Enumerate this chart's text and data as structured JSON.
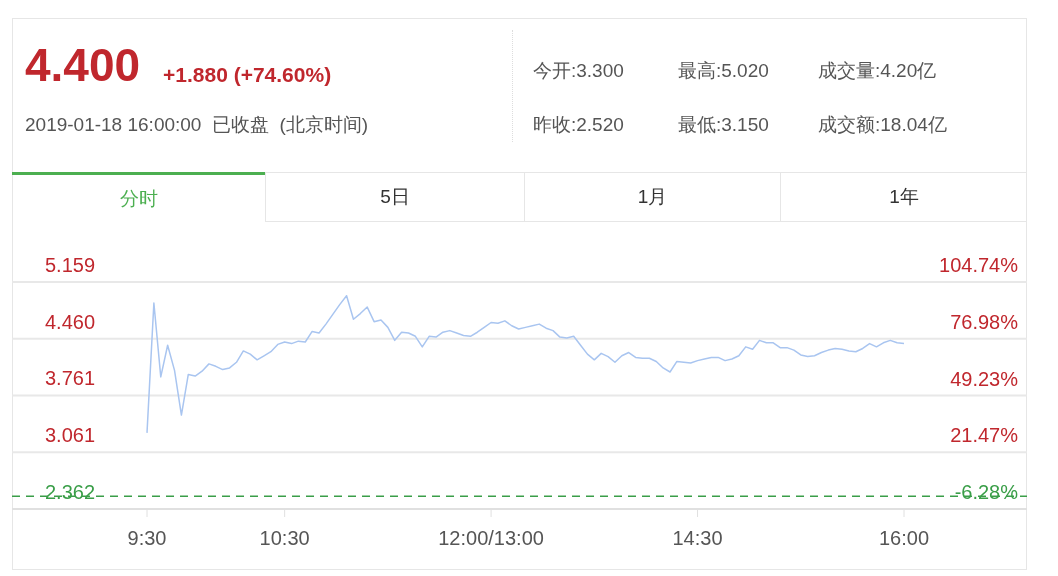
{
  "chart_data": {
    "type": "line",
    "title": "4.400",
    "subtitle": "+1.880 (+74.60%)",
    "annotations": [
      "2019-01-18 16:00:00  已收盘  (北京时间)",
      "今开:3.300",
      "最高:5.020",
      "成交量:4.20亿",
      "昨收:2.520",
      "最低:3.150",
      "成交额:18.04亿",
      "分时",
      "5日",
      "1月",
      "1年"
    ],
    "categories": [
      "9:30",
      null,
      null,
      null,
      null,
      null,
      null,
      null,
      null,
      null,
      null,
      null,
      null,
      null,
      null,
      null,
      null,
      null,
      null,
      null,
      "10:30",
      null,
      null,
      null,
      null,
      null,
      null,
      null,
      null,
      null,
      null,
      null,
      null,
      null,
      null,
      null,
      null,
      null,
      null,
      null,
      null,
      null,
      null,
      null,
      null,
      null,
      null,
      null,
      null,
      null,
      "12:00/13:00",
      null,
      null,
      null,
      null,
      null,
      null,
      null,
      null,
      null,
      null,
      null,
      null,
      null,
      null,
      null,
      null,
      null,
      null,
      null,
      null,
      null,
      null,
      null,
      null,
      null,
      null,
      null,
      null,
      null,
      "14:30",
      null,
      null,
      null,
      null,
      null,
      null,
      null,
      null,
      null,
      null,
      null,
      null,
      null,
      null,
      null,
      null,
      null,
      null,
      null,
      null,
      null,
      null,
      null,
      null,
      null,
      null,
      null,
      null,
      null,
      "16:00"
    ],
    "series": [
      {
        "color": "#a9c5f0",
        "values": [
          3.3,
          4.9,
          3.99,
          4.38,
          4.07,
          3.52,
          4.02,
          4.0,
          4.06,
          4.15,
          4.12,
          4.08,
          4.1,
          4.17,
          4.31,
          4.27,
          4.2,
          4.25,
          4.3,
          4.39,
          4.42,
          4.4,
          4.43,
          4.42,
          4.55,
          4.53,
          4.64,
          4.76,
          4.88,
          4.99,
          4.7,
          4.77,
          4.85,
          4.67,
          4.69,
          4.6,
          4.44,
          4.54,
          4.53,
          4.49,
          4.36,
          4.49,
          4.48,
          4.54,
          4.56,
          4.53,
          4.5,
          4.49,
          4.54,
          4.6,
          4.66,
          4.65,
          4.68,
          4.62,
          4.58,
          4.6,
          4.62,
          4.64,
          4.59,
          4.56,
          4.48,
          4.47,
          4.49,
          4.38,
          4.27,
          4.2,
          4.28,
          4.24,
          4.17,
          4.25,
          4.29,
          4.23,
          4.22,
          4.22,
          4.18,
          4.1,
          4.05,
          4.18,
          4.17,
          4.16,
          4.19,
          4.21,
          4.23,
          4.23,
          4.19,
          4.21,
          4.25,
          4.36,
          4.33,
          4.44,
          4.41,
          4.41,
          4.35,
          4.35,
          4.32,
          4.26,
          4.24,
          4.25,
          4.29,
          4.32,
          4.34,
          4.33,
          4.31,
          4.3,
          4.34,
          4.4,
          4.36,
          4.41,
          4.44,
          4.41,
          4.4
        ]
      }
    ],
    "ylim": [
      2.362,
      5.159
    ],
    "yticks": [
      {
        "value": 2.362,
        "label": "2.362"
      },
      {
        "value": 3.061,
        "label": "3.061"
      },
      {
        "value": 3.761,
        "label": "3.761"
      },
      {
        "value": 4.46,
        "label": "4.460"
      },
      {
        "value": 5.159,
        "label": "5.159"
      }
    ],
    "y2lim": [
      -6.28,
      104.74
    ],
    "y2ticks": [
      {
        "value": -6.28,
        "label": "-6.28%"
      },
      {
        "value": 21.47,
        "label": "21.47%"
      },
      {
        "value": 49.23,
        "label": "49.23%"
      },
      {
        "value": 76.98,
        "label": "76.98%"
      },
      {
        "value": 104.74,
        "label": "104.74%"
      }
    ],
    "grid": "y",
    "ref_lines": [
      {
        "axis": "y",
        "value": 2.52,
        "color": "#3a9e48",
        "line_style": "dashed"
      }
    ]
  }
}
